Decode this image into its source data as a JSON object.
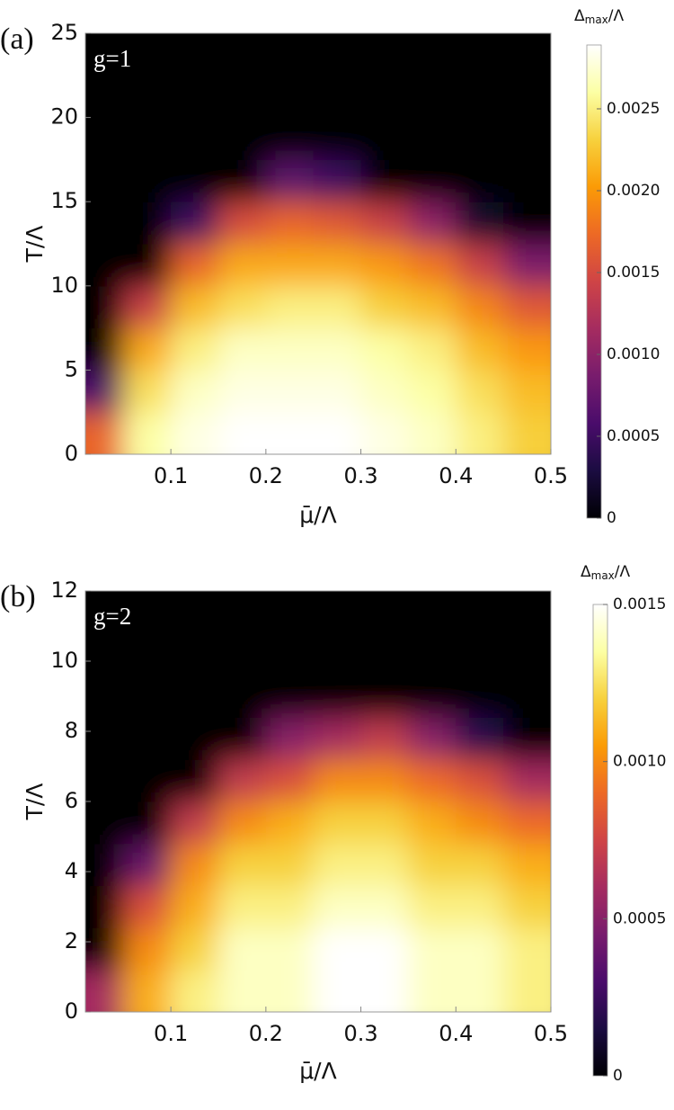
{
  "chart_data": [
    {
      "type": "heatmap",
      "panel_label": "(a)",
      "annotation": "g=1",
      "xlabel": "μ̄/Λ",
      "ylabel": "T/Λ",
      "colorbar_label": {
        "symbol": "Δ",
        "sub": "max",
        "rest": "/Λ"
      },
      "xlim": [
        0.01,
        0.5
      ],
      "ylim": [
        0,
        25
      ],
      "xticks": [
        0.1,
        0.2,
        0.3,
        0.4,
        0.5
      ],
      "yticks": [
        0,
        5,
        10,
        15,
        20,
        25
      ],
      "clim": [
        0,
        0.00289
      ],
      "cticks": [
        0,
        0.0005,
        {
          "value": 0.001,
          "label": "0.0010"
        },
        0.0015,
        {
          "value": 0.002,
          "label": "0.0020"
        },
        0.0025
      ],
      "colormap": [
        "#000004",
        "#1b0c41",
        "#4a0c6b",
        "#781c6d",
        "#a52c60",
        "#cf4446",
        "#ed6925",
        "#fb9b06",
        "#f7d13d",
        "#fcffa4",
        "#ffffff"
      ],
      "x": [
        0.025,
        0.075,
        0.125,
        0.175,
        0.225,
        0.275,
        0.325,
        0.375,
        0.425,
        0.475
      ],
      "y": [
        1.25,
        3.75,
        6.25,
        8.75,
        11.25,
        13.75,
        16.25,
        18.75,
        21.25,
        23.75
      ],
      "z": [
        [
          0.0017,
          0.0026,
          0.0028,
          0.0029,
          0.0029,
          0.0029,
          0.0028,
          0.0027,
          0.0025,
          0.0023
        ],
        [
          0.0006,
          0.0024,
          0.0027,
          0.0028,
          0.0028,
          0.0028,
          0.0027,
          0.0026,
          0.0024,
          0.0022
        ],
        [
          0,
          0.0021,
          0.0025,
          0.0027,
          0.0027,
          0.0027,
          0.0026,
          0.0025,
          0.0022,
          0.002
        ],
        [
          0,
          0.0014,
          0.0022,
          0.0024,
          0.0025,
          0.0025,
          0.0023,
          0.0022,
          0.0019,
          0.0016
        ],
        [
          0,
          0,
          0.0017,
          0.0021,
          0.0021,
          0.0021,
          0.002,
          0.0018,
          0.0014,
          0.0009
        ],
        [
          0,
          0,
          0.0005,
          0.0015,
          0.0017,
          0.0016,
          0.0014,
          0.001,
          0.0002,
          0
        ],
        [
          0,
          0,
          0,
          0,
          0.0007,
          0.0005,
          0,
          0,
          0,
          0
        ],
        [
          0,
          0,
          0,
          0,
          0,
          0,
          0,
          0,
          0,
          0
        ],
        [
          0,
          0,
          0,
          0,
          0,
          0,
          0,
          0,
          0,
          0
        ],
        [
          0,
          0,
          0,
          0,
          0,
          0,
          0,
          0,
          0,
          0
        ]
      ]
    },
    {
      "type": "heatmap",
      "panel_label": "(b)",
      "annotation": "g=2",
      "xlabel": "μ̄/Λ",
      "ylabel": "T/Λ",
      "colorbar_label": {
        "symbol": "Δ",
        "sub": "max",
        "rest": "/Λ"
      },
      "xlim": [
        0.01,
        0.5
      ],
      "ylim": [
        0,
        12
      ],
      "xticks": [
        0.1,
        0.2,
        0.3,
        0.4,
        0.5
      ],
      "yticks": [
        0,
        2,
        4,
        6,
        8,
        10,
        12
      ],
      "clim": [
        0,
        0.0015
      ],
      "cticks": [
        0,
        0.0005,
        {
          "value": 0.001,
          "label": "0.0010"
        },
        0.0015
      ],
      "colormap": [
        "#000004",
        "#1b0c41",
        "#4a0c6b",
        "#781c6d",
        "#a52c60",
        "#cf4446",
        "#ed6925",
        "#fb9b06",
        "#f7d13d",
        "#fcffa4",
        "#ffffff"
      ],
      "x": [
        0.025,
        0.075,
        0.125,
        0.175,
        0.225,
        0.275,
        0.325,
        0.375,
        0.425,
        0.475
      ],
      "y": [
        0.6,
        1.8,
        3.0,
        4.2,
        5.4,
        6.6,
        7.8,
        9.0,
        10.2,
        11.4
      ],
      "z": [
        [
          0.0006,
          0.0011,
          0.0013,
          0.0014,
          0.0014,
          0.0015,
          0.0015,
          0.0014,
          0.0014,
          0.0013
        ],
        [
          0,
          0.001,
          0.0012,
          0.0014,
          0.0014,
          0.0015,
          0.0015,
          0.0014,
          0.0014,
          0.0013
        ],
        [
          0,
          0.0008,
          0.0011,
          0.0013,
          0.0013,
          0.0014,
          0.0014,
          0.0013,
          0.0013,
          0.0012
        ],
        [
          0,
          0.0004,
          0.001,
          0.0012,
          0.0012,
          0.0013,
          0.0013,
          0.0012,
          0.0012,
          0.0011
        ],
        [
          0,
          0,
          0.0007,
          0.001,
          0.0011,
          0.0012,
          0.0012,
          0.0011,
          0.001,
          0.0009
        ],
        [
          0,
          0,
          0,
          0.0007,
          0.0008,
          0.001,
          0.001,
          0.0009,
          0.0008,
          0.0006
        ],
        [
          0,
          0,
          0,
          0,
          0.0005,
          0.0006,
          0.0007,
          0.0005,
          0.0002,
          0
        ],
        [
          0,
          0,
          0,
          0,
          0,
          0,
          0,
          0,
          0,
          0
        ],
        [
          0,
          0,
          0,
          0,
          0,
          0,
          0,
          0,
          0,
          0
        ],
        [
          0,
          0,
          0,
          0,
          0,
          0,
          0,
          0,
          0,
          0
        ]
      ]
    }
  ]
}
